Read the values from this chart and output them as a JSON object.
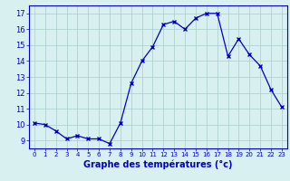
{
  "x": [
    0,
    1,
    2,
    3,
    4,
    5,
    6,
    7,
    8,
    9,
    10,
    11,
    12,
    13,
    14,
    15,
    16,
    17,
    18,
    19,
    20,
    21,
    22,
    23
  ],
  "y": [
    10.1,
    10.0,
    9.6,
    9.1,
    9.3,
    9.1,
    9.1,
    8.8,
    10.1,
    12.6,
    14.0,
    14.9,
    16.3,
    16.5,
    16.0,
    16.7,
    17.0,
    17.0,
    14.3,
    15.4,
    14.4,
    13.7,
    12.2,
    11.1
  ],
  "xlim": [
    -0.5,
    23.5
  ],
  "ylim": [
    8.5,
    17.5
  ],
  "yticks": [
    9,
    10,
    11,
    12,
    13,
    14,
    15,
    16,
    17
  ],
  "xtick_labels": [
    "0",
    "1",
    "2",
    "3",
    "4",
    "5",
    "6",
    "7",
    "8",
    "9",
    "10",
    "11",
    "12",
    "13",
    "14",
    "15",
    "16",
    "17",
    "18",
    "19",
    "20",
    "21",
    "22",
    "23"
  ],
  "xlabel": "Graphe des températures (°c)",
  "line_color": "#0000cc",
  "marker_color": "#0000cc",
  "bg_color": "#d8f0f0",
  "grid_color": "#aacccc",
  "tick_label_color": "#0000cc",
  "xlabel_color": "#0000cc"
}
